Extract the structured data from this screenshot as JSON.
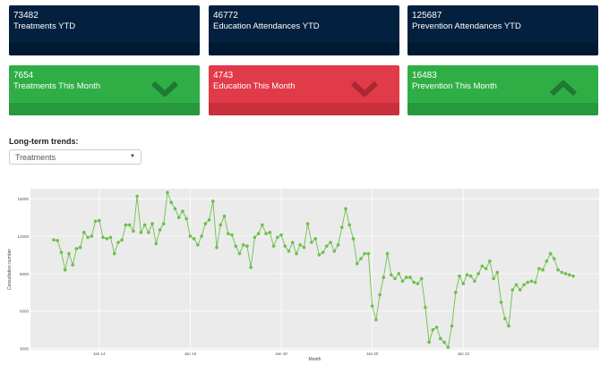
{
  "kpis": [
    {
      "value": "73482",
      "label": "Treatments YTD",
      "color": "#03203f"
    },
    {
      "value": "46772",
      "label": "Education Attendances YTD",
      "color": "#03203f"
    },
    {
      "value": "125687",
      "label": "Prevention Attendances YTD",
      "color": "#03203f"
    },
    {
      "value": "7654",
      "label": "Treatments This Month",
      "color": "#2fae46",
      "trend": "down"
    },
    {
      "value": "4743",
      "label": "Education This Month",
      "color": "#e13a48",
      "trend": "down"
    },
    {
      "value": "16483",
      "label": "Prevention This Month",
      "color": "#2fae46",
      "trend": "up"
    }
  ],
  "trends": {
    "title": "Long-term trends:",
    "selected": "Treatments"
  },
  "chart_data": {
    "type": "line",
    "xlabel": "Month",
    "ylabel": "Consultation number",
    "xticks": [
      "Jan 14",
      "Jan 16",
      "Jan 18",
      "Jan 20",
      "Jan 22"
    ],
    "yticks": [
      "3000",
      "6000",
      "9000",
      "12000",
      "15000"
    ],
    "ylim": [
      2900,
      15800
    ],
    "series_color": "#6cc04a",
    "grid": true,
    "x_start": "2013-01",
    "values": [
      11700,
      11650,
      10700,
      9300,
      10600,
      9700,
      11000,
      11100,
      12300,
      11900,
      12000,
      13200,
      13250,
      11900,
      11800,
      11900,
      10600,
      11500,
      11700,
      12900,
      12900,
      12400,
      15200,
      12300,
      12900,
      12300,
      13000,
      11400,
      12500,
      13000,
      15500,
      14700,
      14200,
      13500,
      14000,
      13400,
      12000,
      11800,
      11300,
      12000,
      13000,
      13300,
      14800,
      11100,
      12900,
      13600,
      12200,
      12100,
      11200,
      10600,
      11300,
      11200,
      9500,
      11900,
      12200,
      12900,
      12200,
      12300,
      11200,
      11900,
      12100,
      11200,
      10800,
      11500,
      10600,
      11300,
      11100,
      13000,
      11500,
      11800,
      10500,
      10700,
      11200,
      11500,
      10800,
      11300,
      12700,
      14200,
      12900,
      11800,
      9800,
      10200,
      10600,
      10600,
      6400,
      5300,
      7300,
      8700,
      10600,
      8900,
      8600,
      9000,
      8400,
      8700,
      8700,
      8300,
      8200,
      8600,
      6300,
      3500,
      4500,
      4700,
      3800,
      3500,
      3100,
      4800,
      7500,
      8800,
      8200,
      8900,
      8800,
      8400,
      9000,
      9600,
      9400,
      10000,
      8600,
      9100,
      6700,
      5400,
      4800,
      7700,
      8100,
      7700,
      8100,
      8300,
      8400,
      8300,
      9400,
      9300,
      10000,
      10600,
      10200,
      9300,
      9100,
      9000,
      8900,
      8800
    ]
  }
}
